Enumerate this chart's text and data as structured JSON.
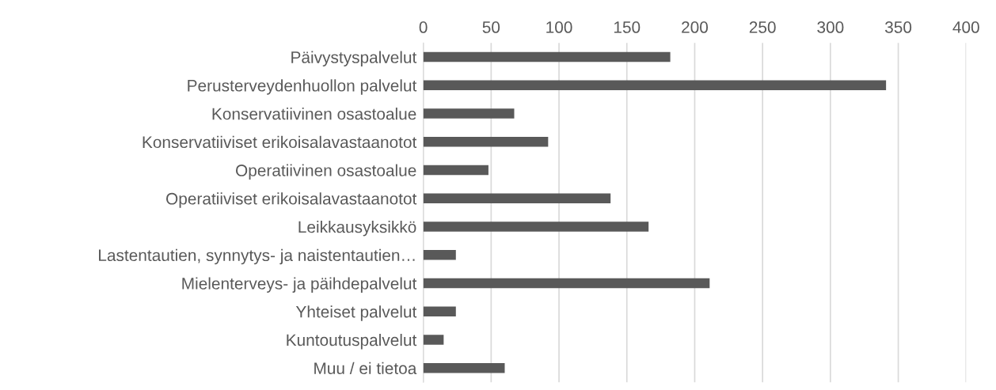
{
  "chart_data": {
    "type": "bar",
    "orientation": "horizontal",
    "categories": [
      "Päivystyspalvelut",
      "Perusterveydenhuollon palvelut",
      "Konservatiivinen osastoalue",
      "Konservatiiviset erikoisalavastaanotot",
      "Operatiivinen osastoalue",
      "Operatiiviset erikoisalavastaanotot",
      "Leikkausyksikkö",
      "Lastentautien, synnytys- ja naistentautien…",
      "Mielenterveys- ja päihdepalvelut",
      "Yhteiset palvelut",
      "Kuntoutuspalvelut",
      "Muu / ei tietoa"
    ],
    "values": [
      182,
      341,
      67,
      92,
      48,
      138,
      166,
      24,
      211,
      24,
      15,
      60
    ],
    "color": "#595959",
    "xlim": [
      0,
      400
    ],
    "xticks": [
      0,
      50,
      100,
      150,
      200,
      250,
      300,
      350,
      400
    ],
    "grid": "x",
    "legend": false
  }
}
